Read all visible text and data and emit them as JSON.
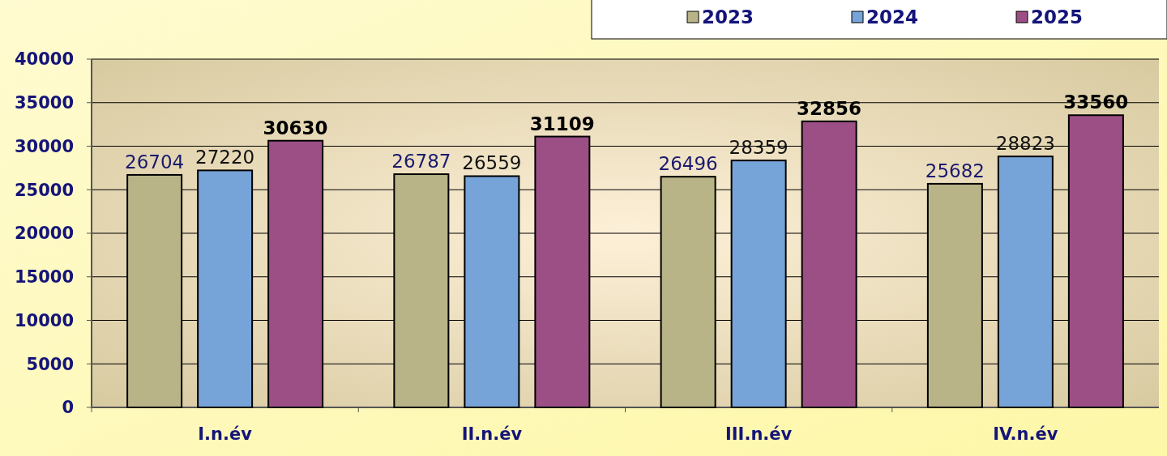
{
  "chart_data": {
    "type": "bar",
    "categories": [
      "I.n.év",
      "II.n.év",
      "III.n.év",
      "IV.n.év"
    ],
    "series": [
      {
        "name": "2023",
        "color": "#b9b488",
        "values": [
          26704,
          26787,
          26496,
          25682
        ]
      },
      {
        "name": "2024",
        "color": "#76a3d8",
        "values": [
          27220,
          26559,
          28359,
          28823
        ]
      },
      {
        "name": "2025",
        "color": "#9c4f85",
        "values": [
          30630,
          31109,
          32856,
          33560
        ]
      }
    ],
    "ylim": [
      0,
      40000
    ],
    "yticks": [
      0,
      5000,
      10000,
      15000,
      20000,
      25000,
      30000,
      35000,
      40000
    ],
    "grid": "y",
    "legend": "top right",
    "data_labels": true
  }
}
